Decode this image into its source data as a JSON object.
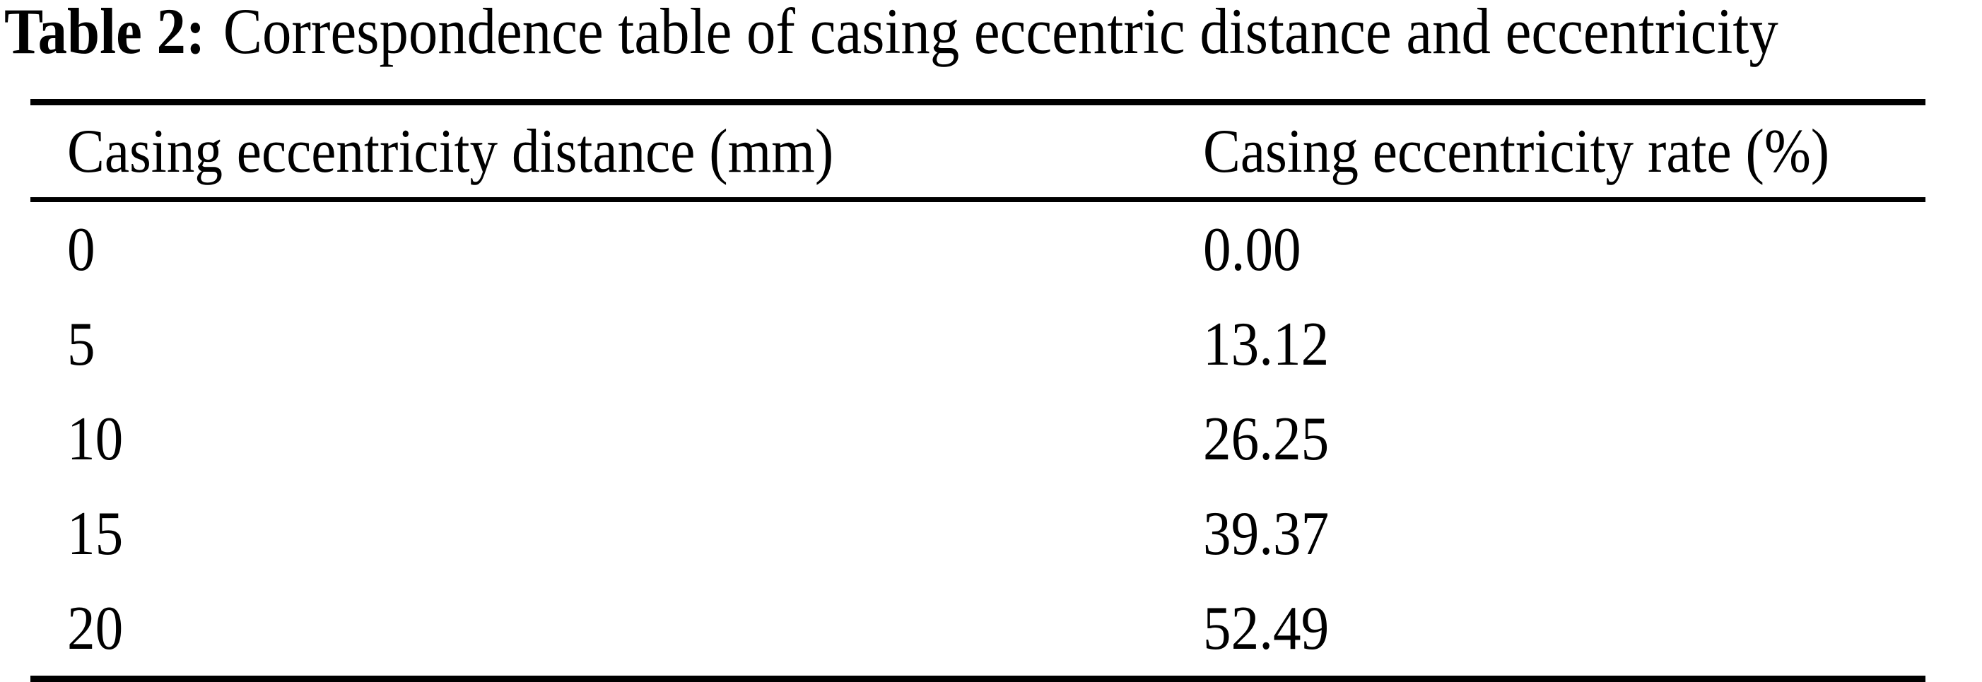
{
  "caption": {
    "label": "Table 2:",
    "text": "Correspondence table of casing eccentric distance and eccentricity"
  },
  "table": {
    "columns": [
      "Casing eccentricity distance (mm)",
      "Casing eccentricity rate (%)"
    ],
    "rows": [
      {
        "distance": "0",
        "rate": "0.00"
      },
      {
        "distance": "5",
        "rate": "13.12"
      },
      {
        "distance": "10",
        "rate": "26.25"
      },
      {
        "distance": "15",
        "rate": "39.37"
      },
      {
        "distance": "20",
        "rate": "52.49"
      }
    ]
  },
  "colors": {
    "text": "#000000",
    "background": "#ffffff",
    "rule": "#000000"
  }
}
